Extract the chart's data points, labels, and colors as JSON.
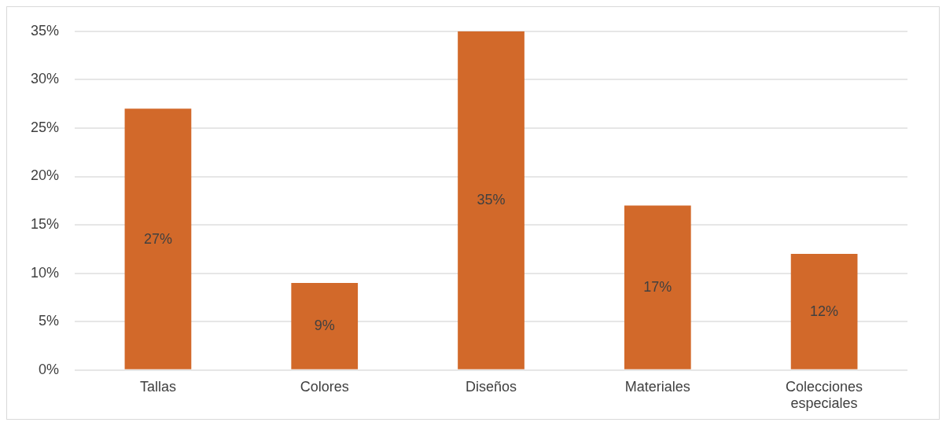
{
  "chart_data": {
    "type": "bar",
    "categories": [
      "Tallas",
      "Colores",
      "Diseños",
      "Materiales",
      "Colecciones especiales"
    ],
    "values": [
      27,
      9,
      35,
      17,
      12
    ],
    "value_labels": [
      "27%",
      "9%",
      "35%",
      "17%",
      "12%"
    ],
    "color": "#d2692a",
    "ylim": [
      0,
      35
    ],
    "yticks": [
      {
        "value": 0,
        "label": "0%"
      },
      {
        "value": 5,
        "label": "5%"
      },
      {
        "value": 10,
        "label": "10%"
      },
      {
        "value": 15,
        "label": "15%"
      },
      {
        "value": 20,
        "label": "20%"
      },
      {
        "value": 25,
        "label": "25%"
      },
      {
        "value": 30,
        "label": "30%"
      },
      {
        "value": 35,
        "label": "35%"
      }
    ],
    "grid": true
  }
}
